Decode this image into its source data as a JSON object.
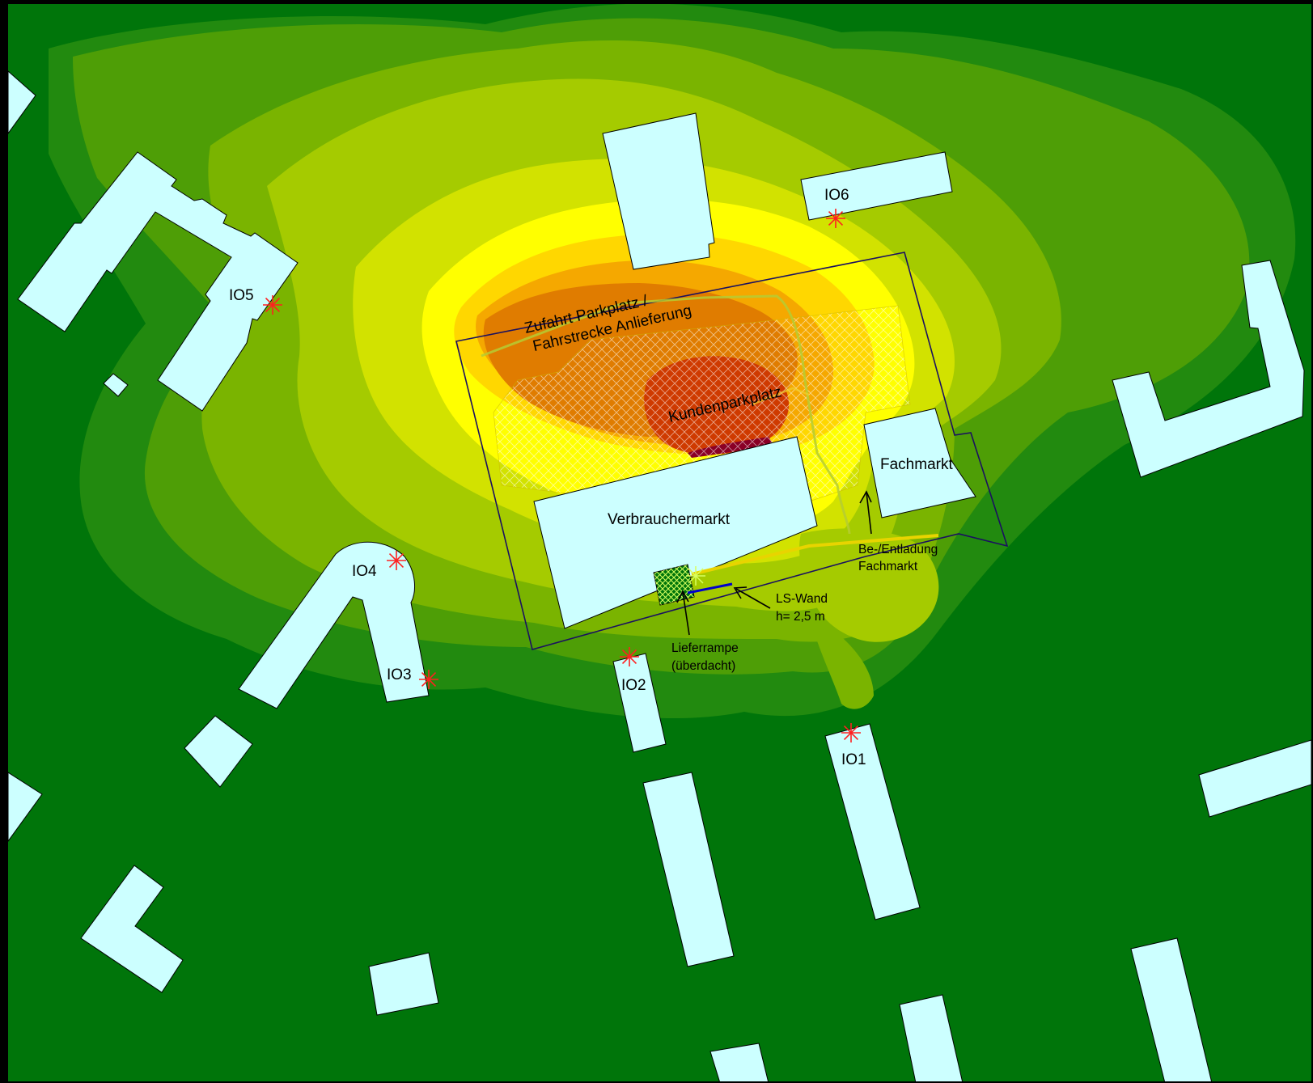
{
  "colors": {
    "frame": "#000000",
    "background": "#00750a",
    "building": "#ccffff",
    "band_1": "#228a0f",
    "band_2": "#4e9e06",
    "band_3": "#7ab400",
    "band_4": "#a5cb00",
    "band_5": "#d2e200",
    "band_6": "#ffff00",
    "band_7": "#ffd700",
    "band_8": "#f5a800",
    "band_9": "#e07c00",
    "band_10": "#cf3a00",
    "band_11": "#8a0026",
    "receiver_marker": "#ff2020",
    "site_boundary": "#1a1060",
    "route_line": "#b5cc33",
    "wall_line": "#0000cc"
  },
  "icons": {
    "receiver": "red-star-marker-icon",
    "arrow": "arrow-icon"
  },
  "receivers": [
    "IO1",
    "IO2",
    "IO3",
    "IO4",
    "IO5",
    "IO6"
  ],
  "buildings": {
    "main_store": "Verbrauchermarkt",
    "specialty_store": "Fachmarkt"
  },
  "annotations": {
    "access_line1": "Zufahrt Parkplatz /",
    "access_line2": "Fahrstrecke Anlieferung",
    "parking": "Kundenparkplatz",
    "loading_line1": "Be-/Entladung",
    "loading_line2": "Fachmarkt",
    "wall_line1": "LS-Wand",
    "wall_line2": "h= 2,5 m",
    "ramp_line1": "Lieferrampe",
    "ramp_line2": "(überdacht)"
  }
}
